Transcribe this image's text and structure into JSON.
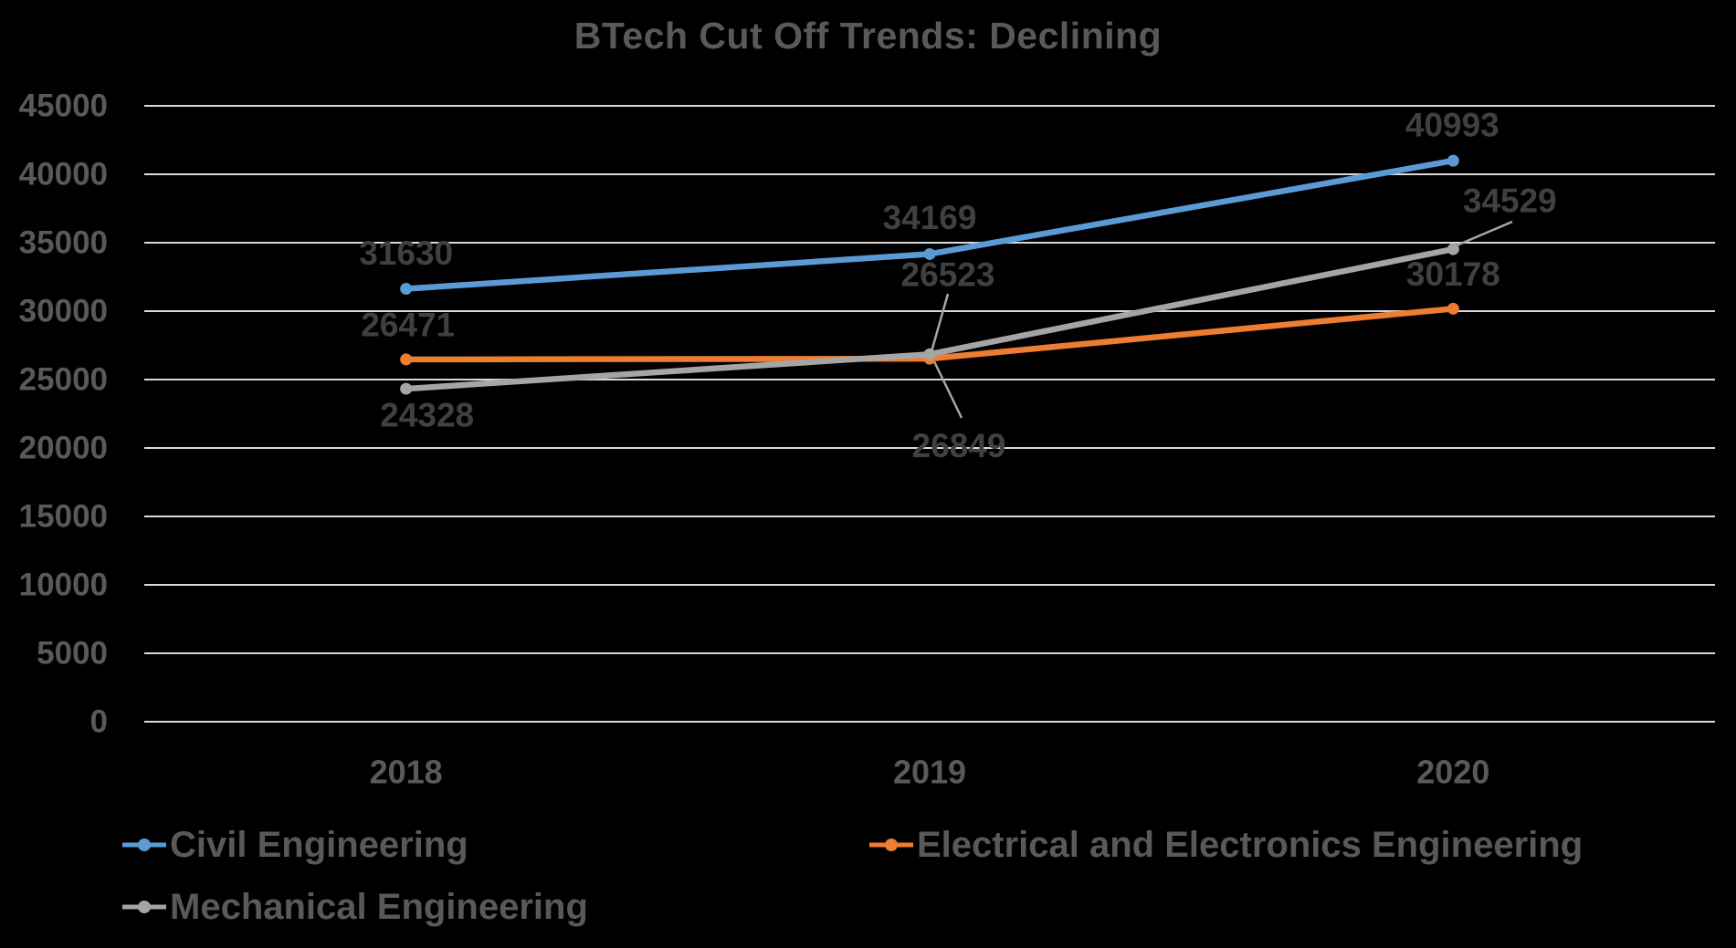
{
  "chart_data": {
    "type": "line",
    "title": "BTech Cut Off Trends: Declining",
    "categories": [
      "2018",
      "2019",
      "2020"
    ],
    "series": [
      {
        "name": "Civil Engineering",
        "color": "#5B9BD5",
        "values": [
          31630,
          34169,
          40993
        ]
      },
      {
        "name": "Electrical and Electronics Engineering",
        "color": "#ED7D31",
        "values": [
          26471,
          26523,
          30178
        ]
      },
      {
        "name": "Mechanical Engineering",
        "color": "#A5A5A5",
        "values": [
          24328,
          26849,
          34529
        ]
      }
    ],
    "xlabel": "",
    "ylabel": "",
    "ylim": [
      0,
      45000
    ],
    "ytick_step": 5000,
    "ytick_labels": [
      "0",
      "5000",
      "10000",
      "15000",
      "20000",
      "25000",
      "30000",
      "35000",
      "40000",
      "45000"
    ],
    "grid": true,
    "data_labels": true,
    "legend_position": "bottom",
    "layout": {
      "background": "#000000",
      "gridline_color": "#D9D9D9",
      "axis_text_color": "#595959",
      "title_color": "#595959",
      "legend_text_color": "#595959",
      "data_label_color": "#404040",
      "leader_line_color": "#A6A6A6",
      "label_offsets": [
        [
          [
            0,
            -39
          ],
          [
            0,
            -40
          ],
          [
            -1,
            -39
          ]
        ],
        [
          [
            2,
            -38
          ],
          [
            20,
            -92
          ],
          [
            0,
            -38
          ]
        ],
        [
          [
            23,
            29
          ],
          [
            32,
            100
          ],
          [
            62,
            -53
          ]
        ]
      ],
      "leader_lines": [
        {
          "series": 1,
          "point": 1,
          "from": [
            1038,
            322
          ],
          "to": [
            1019,
            389
          ]
        },
        {
          "series": 2,
          "point": 1,
          "from": [
            1021,
            392
          ],
          "to": [
            1053,
            458
          ]
        },
        {
          "series": 2,
          "point": 2,
          "from": [
            1595,
            269
          ],
          "to": [
            1656,
            243
          ]
        }
      ]
    }
  }
}
